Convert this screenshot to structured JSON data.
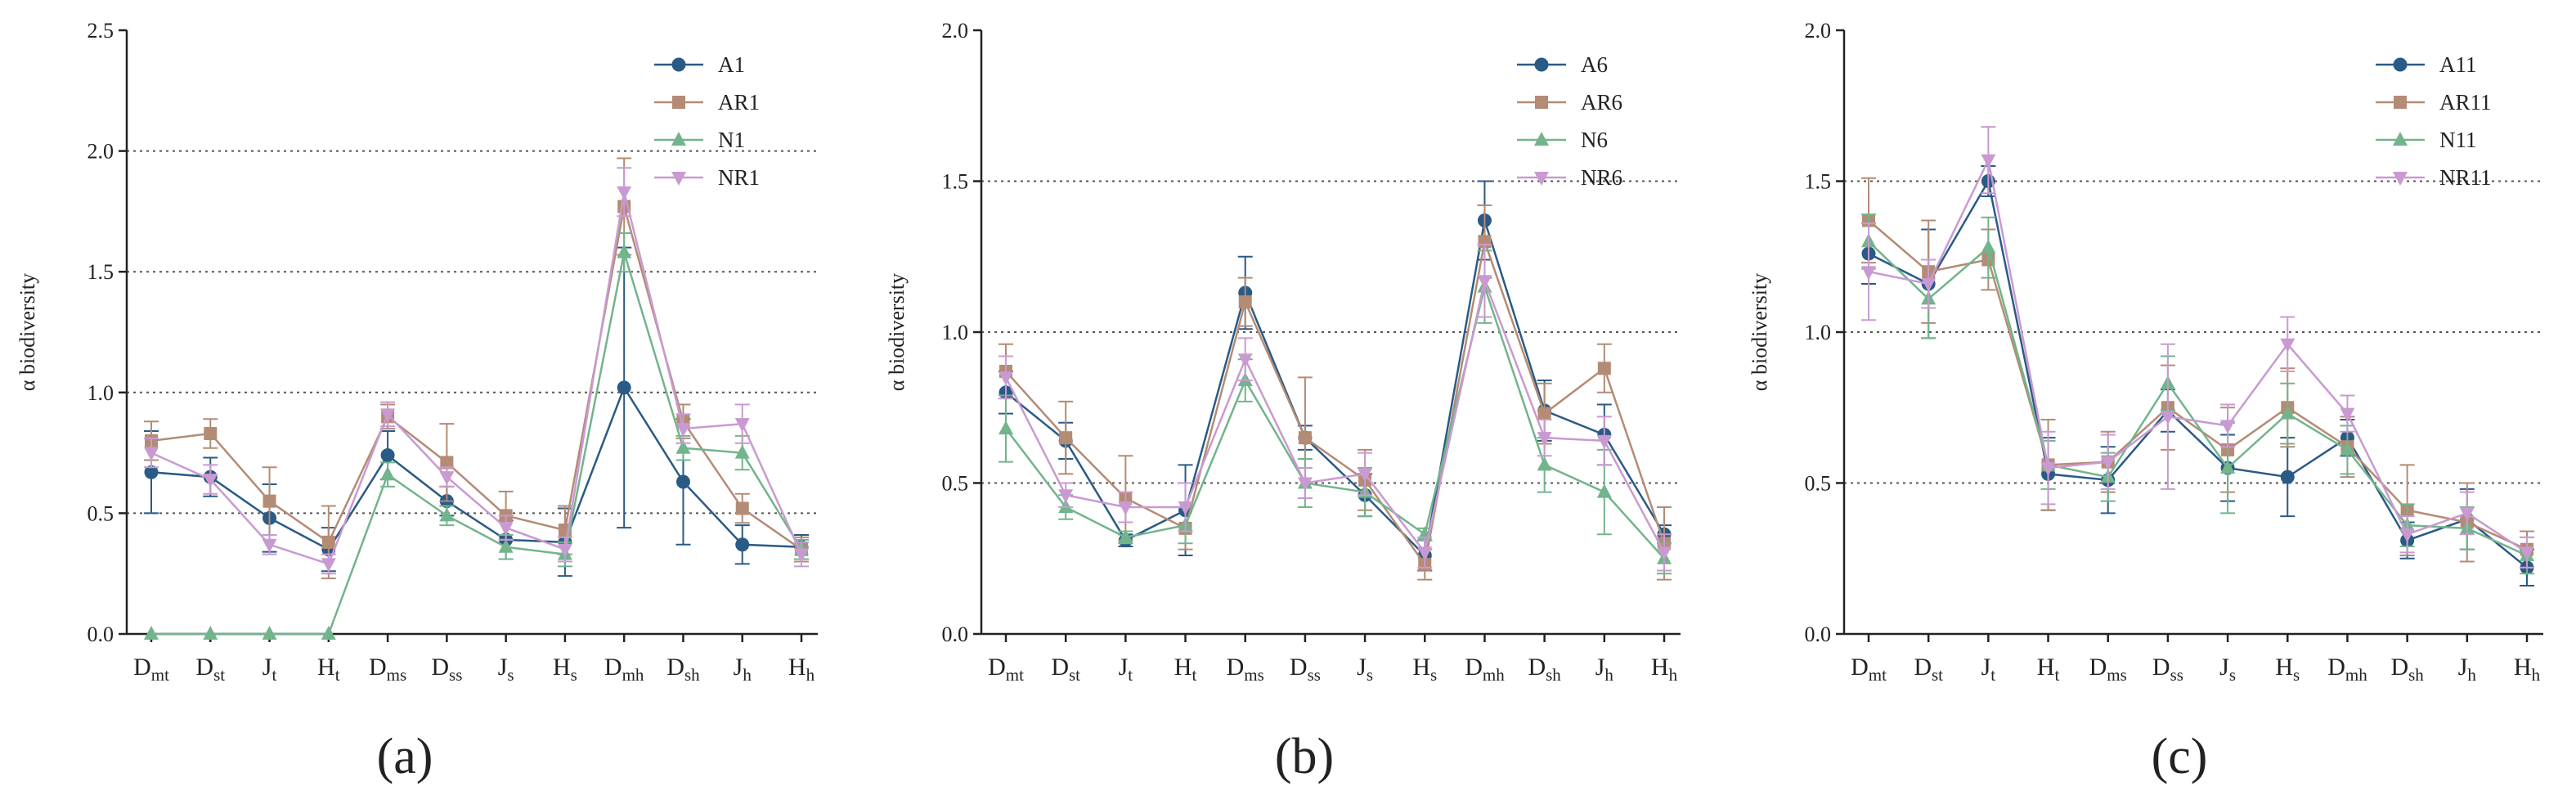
{
  "figure": {
    "ylabel": "α biodiversity",
    "colors": {
      "s1": "#2a5a86",
      "s2": "#b48b74",
      "s3": "#72b48c",
      "s4": "#c99ad1",
      "grid": "#555555",
      "axis": "#222222"
    },
    "markers": {
      "s1": "circle",
      "s2": "square",
      "s3": "triangle-up",
      "s4": "triangle-down"
    }
  },
  "chart_data": [
    {
      "type": "line",
      "panel_label": "(a)",
      "ylim": [
        0,
        2.5
      ],
      "yticks": [
        "0.0",
        "0.5",
        "1.0",
        "1.5",
        "2.0",
        "2.5"
      ],
      "ytick_values": [
        0,
        0.5,
        1.0,
        1.5,
        2.0,
        2.5
      ],
      "grid_values": [
        0.5,
        1.0,
        1.5,
        2.0
      ],
      "legend_position": "top-right",
      "categories": [
        {
          "base": "D",
          "sub": "mt"
        },
        {
          "base": "D",
          "sub": "st"
        },
        {
          "base": "J",
          "sub": "t"
        },
        {
          "base": "H",
          "sub": "t"
        },
        {
          "base": "D",
          "sub": "ms"
        },
        {
          "base": "D",
          "sub": "ss"
        },
        {
          "base": "J",
          "sub": "s"
        },
        {
          "base": "H",
          "sub": "s"
        },
        {
          "base": "D",
          "sub": "mh"
        },
        {
          "base": "D",
          "sub": "sh"
        },
        {
          "base": "J",
          "sub": "h"
        },
        {
          "base": "H",
          "sub": "h"
        }
      ],
      "series": [
        {
          "name": "A1",
          "values": [
            0.67,
            0.65,
            0.48,
            0.35,
            0.74,
            0.55,
            0.39,
            0.38,
            1.02,
            0.63,
            0.37,
            0.36
          ],
          "errors": [
            0.17,
            0.08,
            0.14,
            0.09,
            0.1,
            0.06,
            0.08,
            0.14,
            0.58,
            0.26,
            0.08,
            0.05
          ]
        },
        {
          "name": "AR1",
          "values": [
            0.8,
            0.83,
            0.55,
            0.38,
            0.9,
            0.71,
            0.49,
            0.43,
            1.77,
            0.88,
            0.52,
            0.35
          ],
          "errors": [
            0.08,
            0.06,
            0.14,
            0.15,
            0.05,
            0.16,
            0.1,
            0.1,
            0.2,
            0.07,
            0.06,
            0.05
          ]
        },
        {
          "name": "N1",
          "values": [
            0.0,
            0.0,
            0.0,
            0.0,
            0.66,
            0.49,
            0.36,
            0.33,
            1.58,
            0.77,
            0.75,
            0.35
          ],
          "errors": [
            0,
            0,
            0,
            0,
            0.05,
            0.04,
            0.05,
            0.05,
            0.08,
            0.05,
            0.07,
            0.04
          ]
        },
        {
          "name": "NR1",
          "values": [
            0.75,
            0.64,
            0.37,
            0.29,
            0.91,
            0.65,
            0.44,
            0.35,
            1.83,
            0.85,
            0.87,
            0.33
          ],
          "errors": [
            0.06,
            0.06,
            0.04,
            0.04,
            0.05,
            0.04,
            0.05,
            0.05,
            0.1,
            0.06,
            0.08,
            0.05
          ]
        }
      ]
    },
    {
      "type": "line",
      "panel_label": "(b)",
      "ylim": [
        0,
        2.0
      ],
      "yticks": [
        "0.0",
        "0.5",
        "1.0",
        "1.5",
        "2.0"
      ],
      "ytick_values": [
        0,
        0.5,
        1.0,
        1.5,
        2.0
      ],
      "grid_values": [
        0.5,
        1.0,
        1.5
      ],
      "legend_position": "top-right",
      "categories": [
        {
          "base": "D",
          "sub": "mt"
        },
        {
          "base": "D",
          "sub": "st"
        },
        {
          "base": "J",
          "sub": "t"
        },
        {
          "base": "H",
          "sub": "t"
        },
        {
          "base": "D",
          "sub": "ms"
        },
        {
          "base": "D",
          "sub": "ss"
        },
        {
          "base": "J",
          "sub": "s"
        },
        {
          "base": "H",
          "sub": "s"
        },
        {
          "base": "D",
          "sub": "mh"
        },
        {
          "base": "D",
          "sub": "sh"
        },
        {
          "base": "J",
          "sub": "h"
        },
        {
          "base": "H",
          "sub": "h"
        }
      ],
      "series": [
        {
          "name": "A6",
          "values": [
            0.8,
            0.64,
            0.31,
            0.41,
            1.13,
            0.65,
            0.46,
            0.26,
            1.37,
            0.74,
            0.66,
            0.33
          ],
          "errors": [
            0.07,
            0.06,
            0.02,
            0.15,
            0.12,
            0.04,
            0.07,
            0.05,
            0.13,
            0.1,
            0.1,
            0.03
          ]
        },
        {
          "name": "AR6",
          "values": [
            0.87,
            0.65,
            0.45,
            0.35,
            1.1,
            0.65,
            0.51,
            0.23,
            1.3,
            0.73,
            0.88,
            0.3
          ],
          "errors": [
            0.09,
            0.12,
            0.14,
            0.07,
            0.08,
            0.2,
            0.1,
            0.05,
            0.12,
            0.1,
            0.08,
            0.12
          ]
        },
        {
          "name": "N6",
          "values": [
            0.68,
            0.42,
            0.32,
            0.36,
            0.84,
            0.5,
            0.47,
            0.33,
            1.15,
            0.56,
            0.47,
            0.25
          ],
          "errors": [
            0.11,
            0.04,
            0.02,
            0.06,
            0.07,
            0.08,
            0.08,
            0.02,
            0.12,
            0.09,
            0.14,
            0.05
          ]
        },
        {
          "name": "NR6",
          "values": [
            0.85,
            0.46,
            0.42,
            0.42,
            0.91,
            0.5,
            0.53,
            0.27,
            1.17,
            0.65,
            0.64,
            0.27
          ],
          "errors": [
            0.07,
            0.04,
            0.05,
            0.08,
            0.07,
            0.05,
            0.07,
            0.05,
            0.12,
            0.06,
            0.08,
            0.06
          ]
        }
      ]
    },
    {
      "type": "line",
      "panel_label": "(c)",
      "ylim": [
        0,
        2.0
      ],
      "yticks": [
        "0.0",
        "0.5",
        "1.0",
        "1.5",
        "2.0"
      ],
      "ytick_values": [
        0,
        0.5,
        1.0,
        1.5,
        2.0
      ],
      "grid_values": [
        0.5,
        1.0,
        1.5
      ],
      "legend_position": "top-right",
      "categories": [
        {
          "base": "D",
          "sub": "mt"
        },
        {
          "base": "D",
          "sub": "st"
        },
        {
          "base": "J",
          "sub": "t"
        },
        {
          "base": "H",
          "sub": "t"
        },
        {
          "base": "D",
          "sub": "ms"
        },
        {
          "base": "D",
          "sub": "ss"
        },
        {
          "base": "J",
          "sub": "s"
        },
        {
          "base": "H",
          "sub": "s"
        },
        {
          "base": "D",
          "sub": "mh"
        },
        {
          "base": "D",
          "sub": "sh"
        },
        {
          "base": "J",
          "sub": "h"
        },
        {
          "base": "H",
          "sub": "h"
        }
      ],
      "series": [
        {
          "name": "A11",
          "values": [
            1.26,
            1.16,
            1.5,
            0.53,
            0.51,
            0.74,
            0.55,
            0.52,
            0.65,
            0.31,
            0.38,
            0.22
          ],
          "errors": [
            0.1,
            0.18,
            0.05,
            0.12,
            0.11,
            0.07,
            0.11,
            0.13,
            0.06,
            0.06,
            0.1,
            0.06
          ]
        },
        {
          "name": "AR11",
          "values": [
            1.37,
            1.2,
            1.24,
            0.56,
            0.57,
            0.75,
            0.61,
            0.75,
            0.62,
            0.41,
            0.37,
            0.28
          ],
          "errors": [
            0.14,
            0.17,
            0.1,
            0.15,
            0.1,
            0.14,
            0.14,
            0.13,
            0.1,
            0.15,
            0.13,
            0.06
          ]
        },
        {
          "name": "N11",
          "values": [
            1.3,
            1.11,
            1.28,
            0.56,
            0.52,
            0.83,
            0.55,
            0.73,
            0.61,
            0.36,
            0.35,
            0.26
          ],
          "errors": [
            0.09,
            0.13,
            0.1,
            0.08,
            0.08,
            0.09,
            0.15,
            0.1,
            0.08,
            0.07,
            0.07,
            0.06
          ]
        },
        {
          "name": "NR11",
          "values": [
            1.2,
            1.16,
            1.57,
            0.55,
            0.57,
            0.72,
            0.69,
            0.96,
            0.73,
            0.33,
            0.4,
            0.27
          ],
          "errors": [
            0.16,
            0.08,
            0.11,
            0.12,
            0.09,
            0.24,
            0.07,
            0.09,
            0.06,
            0.06,
            0.07,
            0.05
          ]
        }
      ]
    }
  ]
}
